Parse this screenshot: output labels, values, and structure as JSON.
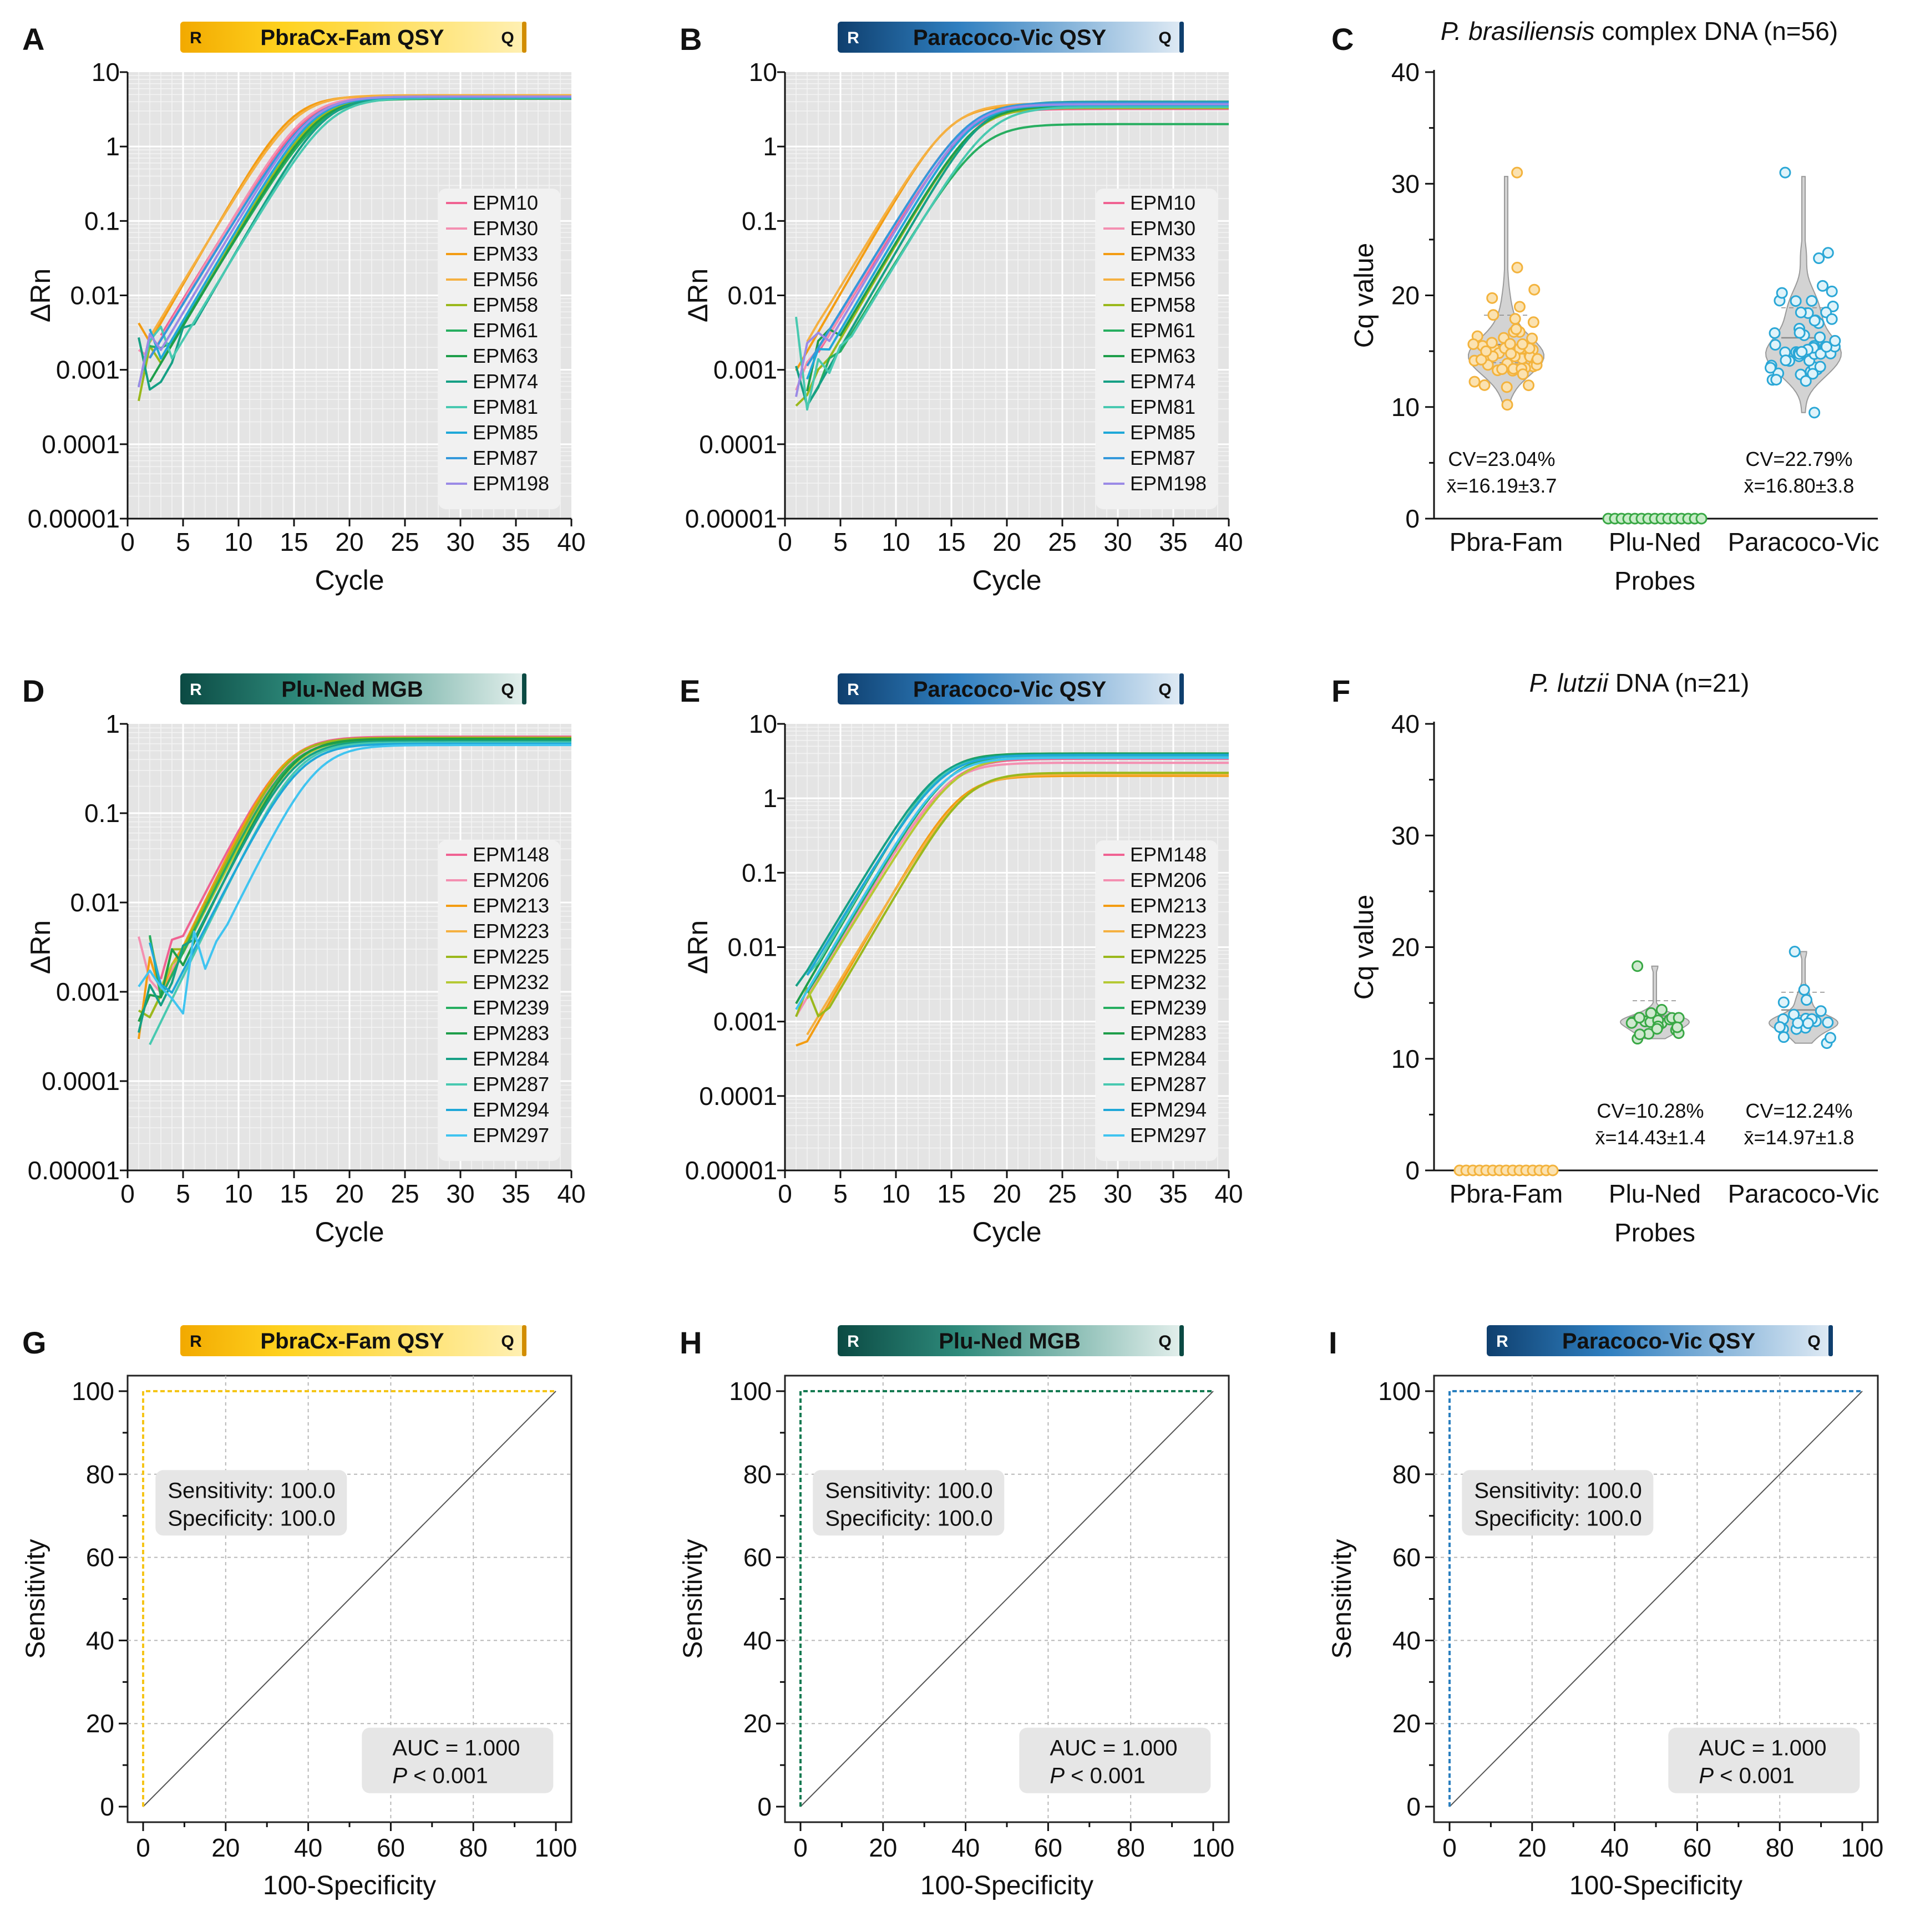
{
  "panels": [
    {
      "letter": "A",
      "type": "amp",
      "probe": {
        "label": "PbraCx-Fam QSY",
        "scheme": "fam"
      },
      "ylim_log": [
        1e-05,
        10
      ],
      "yticks": [
        "10",
        "1",
        "0.1",
        "0.01",
        "0.001",
        "0.0001",
        "0.00001"
      ],
      "xticks": [
        "0",
        "5",
        "10",
        "15",
        "20",
        "25",
        "30",
        "35",
        "40"
      ],
      "xlabel": "Cycle",
      "ylabel": "ΔRn",
      "legend": [
        {
          "name": "EPM10",
          "color": "#f06292"
        },
        {
          "name": "EPM30",
          "color": "#f48fb1"
        },
        {
          "name": "EPM33",
          "color": "#f39c12"
        },
        {
          "name": "EPM56",
          "color": "#f5b041"
        },
        {
          "name": "EPM58",
          "color": "#9ab81c"
        },
        {
          "name": "EPM61",
          "color": "#27ae60"
        },
        {
          "name": "EPM63",
          "color": "#1e9e4a"
        },
        {
          "name": "EPM74",
          "color": "#16a085"
        },
        {
          "name": "EPM81",
          "color": "#48c9b0"
        },
        {
          "name": "EPM85",
          "color": "#1fa8d8"
        },
        {
          "name": "EPM87",
          "color": "#3498db"
        },
        {
          "name": "EPM198",
          "color": "#9b8ae6"
        }
      ],
      "curves": {
        "plateau": [
          4.6,
          4.7,
          4.8,
          4.9,
          4.5,
          4.4,
          4.4,
          4.6,
          4.5,
          4.6,
          4.7,
          4.7
        ],
        "ct": [
          16.2,
          16.0,
          14.8,
          15.2,
          17.0,
          17.5,
          17.2,
          17.8,
          18.2,
          16.8,
          16.5,
          16.6
        ],
        "noise_seed": 1
      }
    },
    {
      "letter": "B",
      "type": "amp",
      "probe": {
        "label": "Paracoco-Vic QSY",
        "scheme": "vic"
      },
      "ylim_log": [
        1e-05,
        10
      ],
      "yticks": [
        "10",
        "1",
        "0.1",
        "0.01",
        "0.001",
        "0.0001",
        "0.00001"
      ],
      "xticks": [
        "0",
        "5",
        "10",
        "15",
        "20",
        "25",
        "30",
        "35",
        "40"
      ],
      "xlabel": "Cycle",
      "ylabel": "ΔRn",
      "legend": [
        {
          "name": "EPM10",
          "color": "#f06292"
        },
        {
          "name": "EPM30",
          "color": "#f48fb1"
        },
        {
          "name": "EPM33",
          "color": "#f39c12"
        },
        {
          "name": "EPM56",
          "color": "#f5b041"
        },
        {
          "name": "EPM58",
          "color": "#9ab81c"
        },
        {
          "name": "EPM61",
          "color": "#27ae60"
        },
        {
          "name": "EPM63",
          "color": "#1e9e4a"
        },
        {
          "name": "EPM74",
          "color": "#16a085"
        },
        {
          "name": "EPM81",
          "color": "#48c9b0"
        },
        {
          "name": "EPM85",
          "color": "#1fa8d8"
        },
        {
          "name": "EPM87",
          "color": "#3498db"
        },
        {
          "name": "EPM198",
          "color": "#9b8ae6"
        }
      ],
      "curves": {
        "plateau": [
          3.2,
          3.4,
          3.6,
          3.8,
          3.3,
          2.0,
          3.5,
          4.0,
          3.4,
          3.6,
          3.9,
          3.7
        ],
        "ct": [
          16.5,
          16.2,
          14.8,
          15.0,
          17.2,
          17.6,
          17.3,
          17.8,
          18.5,
          16.9,
          16.6,
          16.7
        ],
        "noise_seed": 2
      }
    },
    {
      "letter": "C",
      "type": "violin",
      "title_italic": "P. brasiliensis",
      "title_rest": " complex DNA (n=56)",
      "yticks": [
        "0",
        "10",
        "20",
        "30",
        "40"
      ],
      "ylim": [
        0,
        40
      ],
      "categories": [
        "Pbra-Fam",
        "Plu-Ned",
        "Paracoco-Vic"
      ],
      "xlabel": "Probes",
      "ylabel": "Cq value",
      "stats": [
        {
          "cv": "CV=23.04%",
          "mean": "x̄=16.19±3.7"
        },
        {
          "cv": "",
          "mean": ""
        },
        {
          "cv": "CV=22.79%",
          "mean": "x̄=16.80±3.8"
        }
      ],
      "groups": [
        {
          "n": 56,
          "mean": 16.19,
          "sd": 3.7,
          "min": 10.2,
          "max": 31.0,
          "fill": "#fbe2b0",
          "stroke": "#f3b33d"
        },
        {
          "n": 56,
          "mean": 0,
          "sd": 0,
          "min": 0,
          "max": 0,
          "fill": "#c8ecc8",
          "stroke": "#39a845"
        },
        {
          "n": 56,
          "mean": 16.8,
          "sd": 3.8,
          "min": 9.5,
          "max": 31.0,
          "fill": "#dff3fa",
          "stroke": "#2aa7d6"
        }
      ]
    },
    {
      "letter": "D",
      "type": "amp",
      "probe": {
        "label": "Plu-Ned MGB",
        "scheme": "ned"
      },
      "ylim_log": [
        1e-05,
        1
      ],
      "yticks": [
        "1",
        "0.1",
        "0.01",
        "0.001",
        "0.0001",
        "0.00001"
      ],
      "xticks": [
        "0",
        "5",
        "10",
        "15",
        "20",
        "25",
        "30",
        "35",
        "40"
      ],
      "xlabel": "Cycle",
      "ylabel": "ΔRn",
      "legend": [
        {
          "name": "EPM148",
          "color": "#f06292"
        },
        {
          "name": "EPM206",
          "color": "#f48fb1"
        },
        {
          "name": "EPM213",
          "color": "#f39c12"
        },
        {
          "name": "EPM223",
          "color": "#f5b041"
        },
        {
          "name": "EPM225",
          "color": "#9ab81c"
        },
        {
          "name": "EPM232",
          "color": "#b5c934"
        },
        {
          "name": "EPM239",
          "color": "#27ae60"
        },
        {
          "name": "EPM283",
          "color": "#1e9e4a"
        },
        {
          "name": "EPM284",
          "color": "#16a085"
        },
        {
          "name": "EPM287",
          "color": "#48c9b0"
        },
        {
          "name": "EPM294",
          "color": "#1fa8d8"
        },
        {
          "name": "EPM297",
          "color": "#40c4f0"
        }
      ],
      "curves": {
        "plateau": [
          0.72,
          0.7,
          0.68,
          0.66,
          0.7,
          0.68,
          0.66,
          0.68,
          0.64,
          0.62,
          0.6,
          0.58
        ],
        "ct": [
          14.2,
          14.4,
          14.0,
          14.6,
          14.3,
          14.9,
          14.5,
          14.8,
          15.0,
          15.3,
          15.5,
          17.0
        ],
        "noise_seed": 3
      }
    },
    {
      "letter": "E",
      "type": "amp",
      "probe": {
        "label": "Paracoco-Vic QSY",
        "scheme": "vic"
      },
      "ylim_log": [
        1e-05,
        10
      ],
      "yticks": [
        "10",
        "1",
        "0.1",
        "0.01",
        "0.001",
        "0.0001",
        "0.00001"
      ],
      "xticks": [
        "0",
        "5",
        "10",
        "15",
        "20",
        "25",
        "30",
        "35",
        "40"
      ],
      "xlabel": "Cycle",
      "ylabel": "ΔRn",
      "legend": [
        {
          "name": "EPM148",
          "color": "#f06292"
        },
        {
          "name": "EPM206",
          "color": "#f48fb1"
        },
        {
          "name": "EPM213",
          "color": "#f39c12"
        },
        {
          "name": "EPM223",
          "color": "#f5b041"
        },
        {
          "name": "EPM225",
          "color": "#9ab81c"
        },
        {
          "name": "EPM232",
          "color": "#b5c934"
        },
        {
          "name": "EPM239",
          "color": "#27ae60"
        },
        {
          "name": "EPM283",
          "color": "#1e9e4a"
        },
        {
          "name": "EPM284",
          "color": "#16a085"
        },
        {
          "name": "EPM287",
          "color": "#48c9b0"
        },
        {
          "name": "EPM294",
          "color": "#1fa8d8"
        },
        {
          "name": "EPM297",
          "color": "#40c4f0"
        }
      ],
      "curves": {
        "plateau": [
          3.4,
          3.0,
          2.0,
          2.1,
          2.2,
          3.6,
          3.8,
          4.0,
          3.9,
          3.7,
          3.8,
          3.5
        ],
        "ct": [
          15.0,
          14.6,
          15.8,
          16.2,
          16.4,
          15.4,
          14.8,
          14.0,
          13.8,
          13.9,
          14.2,
          14.5
        ],
        "noise_seed": 4
      }
    },
    {
      "letter": "F",
      "type": "violin",
      "title_italic": "P. lutzii",
      "title_rest": " DNA (n=21)",
      "yticks": [
        "0",
        "10",
        "20",
        "30",
        "40"
      ],
      "ylim": [
        0,
        40
      ],
      "categories": [
        "Pbra-Fam",
        "Plu-Ned",
        "Paracoco-Vic"
      ],
      "xlabel": "Probes",
      "ylabel": "Cq value",
      "stats": [
        {
          "cv": "",
          "mean": ""
        },
        {
          "cv": "CV=10.28%",
          "mean": "x̄=14.43±1.4"
        },
        {
          "cv": "CV=12.24%",
          "mean": "x̄=14.97±1.8"
        }
      ],
      "groups": [
        {
          "n": 21,
          "mean": 0,
          "sd": 0,
          "min": 0,
          "max": 0,
          "fill": "#fbe2b0",
          "stroke": "#f3b33d"
        },
        {
          "n": 21,
          "mean": 14.43,
          "sd": 1.4,
          "min": 11.8,
          "max": 18.3,
          "fill": "#cfe9cf",
          "stroke": "#39a845"
        },
        {
          "n": 21,
          "mean": 14.97,
          "sd": 1.8,
          "min": 11.4,
          "max": 19.6,
          "fill": "#dff3fa",
          "stroke": "#2aa7d6"
        }
      ]
    },
    {
      "letter": "G",
      "type": "roc",
      "probe": {
        "label": "PbraCx-Fam QSY",
        "scheme": "fam"
      },
      "xticks": [
        "0",
        "20",
        "40",
        "60",
        "80",
        "100"
      ],
      "yticks": [
        "0",
        "20",
        "40",
        "60",
        "80",
        "100"
      ],
      "xlabel": "100-Specificity",
      "ylabel": "Sensitivity",
      "sens": "Sensitivity: 100.0",
      "spec": "Specificity: 100.0",
      "auc": "AUC = 1.000",
      "p_italic": "P",
      "p_rest": " < 0.001",
      "line_color": "#f5c518",
      "roc_points": [
        [
          0,
          0
        ],
        [
          0,
          100
        ],
        [
          100,
          100
        ]
      ]
    },
    {
      "letter": "H",
      "type": "roc",
      "probe": {
        "label": "Plu-Ned MGB",
        "scheme": "ned"
      },
      "xticks": [
        "0",
        "20",
        "40",
        "60",
        "80",
        "100"
      ],
      "yticks": [
        "0",
        "20",
        "40",
        "60",
        "80",
        "100"
      ],
      "xlabel": "100-Specificity",
      "ylabel": "Sensitivity",
      "sens": "Sensitivity: 100.0",
      "spec": "Specificity: 100.0",
      "auc": "AUC = 1.000",
      "p_italic": "P",
      "p_rest": " < 0.001",
      "line_color": "#157a52",
      "roc_points": [
        [
          0,
          0
        ],
        [
          0,
          100
        ],
        [
          100,
          100
        ]
      ]
    },
    {
      "letter": "I",
      "type": "roc",
      "probe": {
        "label": "Paracoco-Vic QSY",
        "scheme": "vic"
      },
      "xticks": [
        "0",
        "20",
        "40",
        "60",
        "80",
        "100"
      ],
      "yticks": [
        "0",
        "20",
        "40",
        "60",
        "80",
        "100"
      ],
      "xlabel": "100-Specificity",
      "ylabel": "Sensitivity",
      "sens": "Sensitivity: 100.0",
      "spec": "Specificity: 100.0",
      "auc": "AUC = 1.000",
      "p_italic": "P",
      "p_rest": " < 0.001",
      "line_color": "#2a7fbf",
      "roc_points": [
        [
          0,
          0
        ],
        [
          0,
          100
        ],
        [
          100,
          100
        ]
      ]
    }
  ],
  "probe_tag": {
    "r": "R",
    "q": "Q"
  },
  "chart_data": [
    {
      "type": "line",
      "title": "A · PbraCx-Fam QSY",
      "xlabel": "Cycle",
      "ylabel": "ΔRn",
      "xlim": [
        0,
        40
      ],
      "ylim": [
        1e-05,
        10
      ],
      "yscale": "log",
      "series": [
        "EPM10",
        "EPM30",
        "EPM33",
        "EPM56",
        "EPM58",
        "EPM61",
        "EPM63",
        "EPM74",
        "EPM81",
        "EPM85",
        "EPM87",
        "EPM198"
      ]
    },
    {
      "type": "line",
      "title": "B · Paracoco-Vic QSY",
      "xlabel": "Cycle",
      "ylabel": "ΔRn",
      "xlim": [
        0,
        40
      ],
      "ylim": [
        1e-05,
        10
      ],
      "yscale": "log",
      "series": [
        "EPM10",
        "EPM30",
        "EPM33",
        "EPM56",
        "EPM58",
        "EPM61",
        "EPM63",
        "EPM74",
        "EPM81",
        "EPM85",
        "EPM87",
        "EPM198"
      ]
    },
    {
      "type": "scatter",
      "title": "C · P. brasiliensis complex DNA (n=56)",
      "xlabel": "Probes",
      "ylabel": "Cq value",
      "ylim": [
        0,
        40
      ],
      "categories": [
        "Pbra-Fam",
        "Plu-Ned",
        "Paracoco-Vic"
      ],
      "annotations": [
        "CV=23.04%",
        "x̄=16.19±3.7",
        "CV=22.79%",
        "x̄=16.80±3.8"
      ]
    },
    {
      "type": "line",
      "title": "D · Plu-Ned MGB",
      "xlabel": "Cycle",
      "ylabel": "ΔRn",
      "xlim": [
        0,
        40
      ],
      "ylim": [
        1e-05,
        1
      ],
      "yscale": "log",
      "series": [
        "EPM148",
        "EPM206",
        "EPM213",
        "EPM223",
        "EPM225",
        "EPM232",
        "EPM239",
        "EPM283",
        "EPM284",
        "EPM287",
        "EPM294",
        "EPM297"
      ]
    },
    {
      "type": "line",
      "title": "E · Paracoco-Vic QSY",
      "xlabel": "Cycle",
      "ylabel": "ΔRn",
      "xlim": [
        0,
        40
      ],
      "ylim": [
        1e-05,
        10
      ],
      "yscale": "log",
      "series": [
        "EPM148",
        "EPM206",
        "EPM213",
        "EPM223",
        "EPM225",
        "EPM232",
        "EPM239",
        "EPM283",
        "EPM284",
        "EPM287",
        "EPM294",
        "EPM297"
      ]
    },
    {
      "type": "scatter",
      "title": "F · P. lutzii DNA (n=21)",
      "xlabel": "Probes",
      "ylabel": "Cq value",
      "ylim": [
        0,
        40
      ],
      "categories": [
        "Pbra-Fam",
        "Plu-Ned",
        "Paracoco-Vic"
      ],
      "annotations": [
        "CV=10.28%",
        "x̄=14.43±1.4",
        "CV=12.24%",
        "x̄=14.97±1.8"
      ]
    },
    {
      "type": "line",
      "title": "G · PbraCx-Fam QSY ROC",
      "xlabel": "100-Specificity",
      "ylabel": "Sensitivity",
      "xlim": [
        0,
        100
      ],
      "ylim": [
        0,
        100
      ],
      "series": [
        {
          "name": "ROC",
          "x": [
            0,
            0,
            100
          ],
          "y": [
            0,
            100,
            100
          ]
        },
        {
          "name": "reference",
          "x": [
            0,
            100
          ],
          "y": [
            0,
            100
          ]
        }
      ],
      "annotations": [
        "Sensitivity: 100.0",
        "Specificity: 100.0",
        "AUC = 1.000",
        "P < 0.001"
      ]
    },
    {
      "type": "line",
      "title": "H · Plu-Ned MGB ROC",
      "xlabel": "100-Specificity",
      "ylabel": "Sensitivity",
      "xlim": [
        0,
        100
      ],
      "ylim": [
        0,
        100
      ],
      "series": [
        {
          "name": "ROC",
          "x": [
            0,
            0,
            100
          ],
          "y": [
            0,
            100,
            100
          ]
        },
        {
          "name": "reference",
          "x": [
            0,
            100
          ],
          "y": [
            0,
            100
          ]
        }
      ],
      "annotations": [
        "Sensitivity: 100.0",
        "Specificity: 100.0",
        "AUC = 1.000",
        "P < 0.001"
      ]
    },
    {
      "type": "line",
      "title": "I · Paracoco-Vic QSY ROC",
      "xlabel": "100-Specificity",
      "ylabel": "Sensitivity",
      "xlim": [
        0,
        100
      ],
      "ylim": [
        0,
        100
      ],
      "series": [
        {
          "name": "ROC",
          "x": [
            0,
            0,
            100
          ],
          "y": [
            0,
            100,
            100
          ]
        },
        {
          "name": "reference",
          "x": [
            0,
            100
          ],
          "y": [
            0,
            100
          ]
        }
      ],
      "annotations": [
        "Sensitivity: 100.0",
        "Specificity: 100.0",
        "AUC = 1.000",
        "P < 0.001"
      ]
    }
  ]
}
